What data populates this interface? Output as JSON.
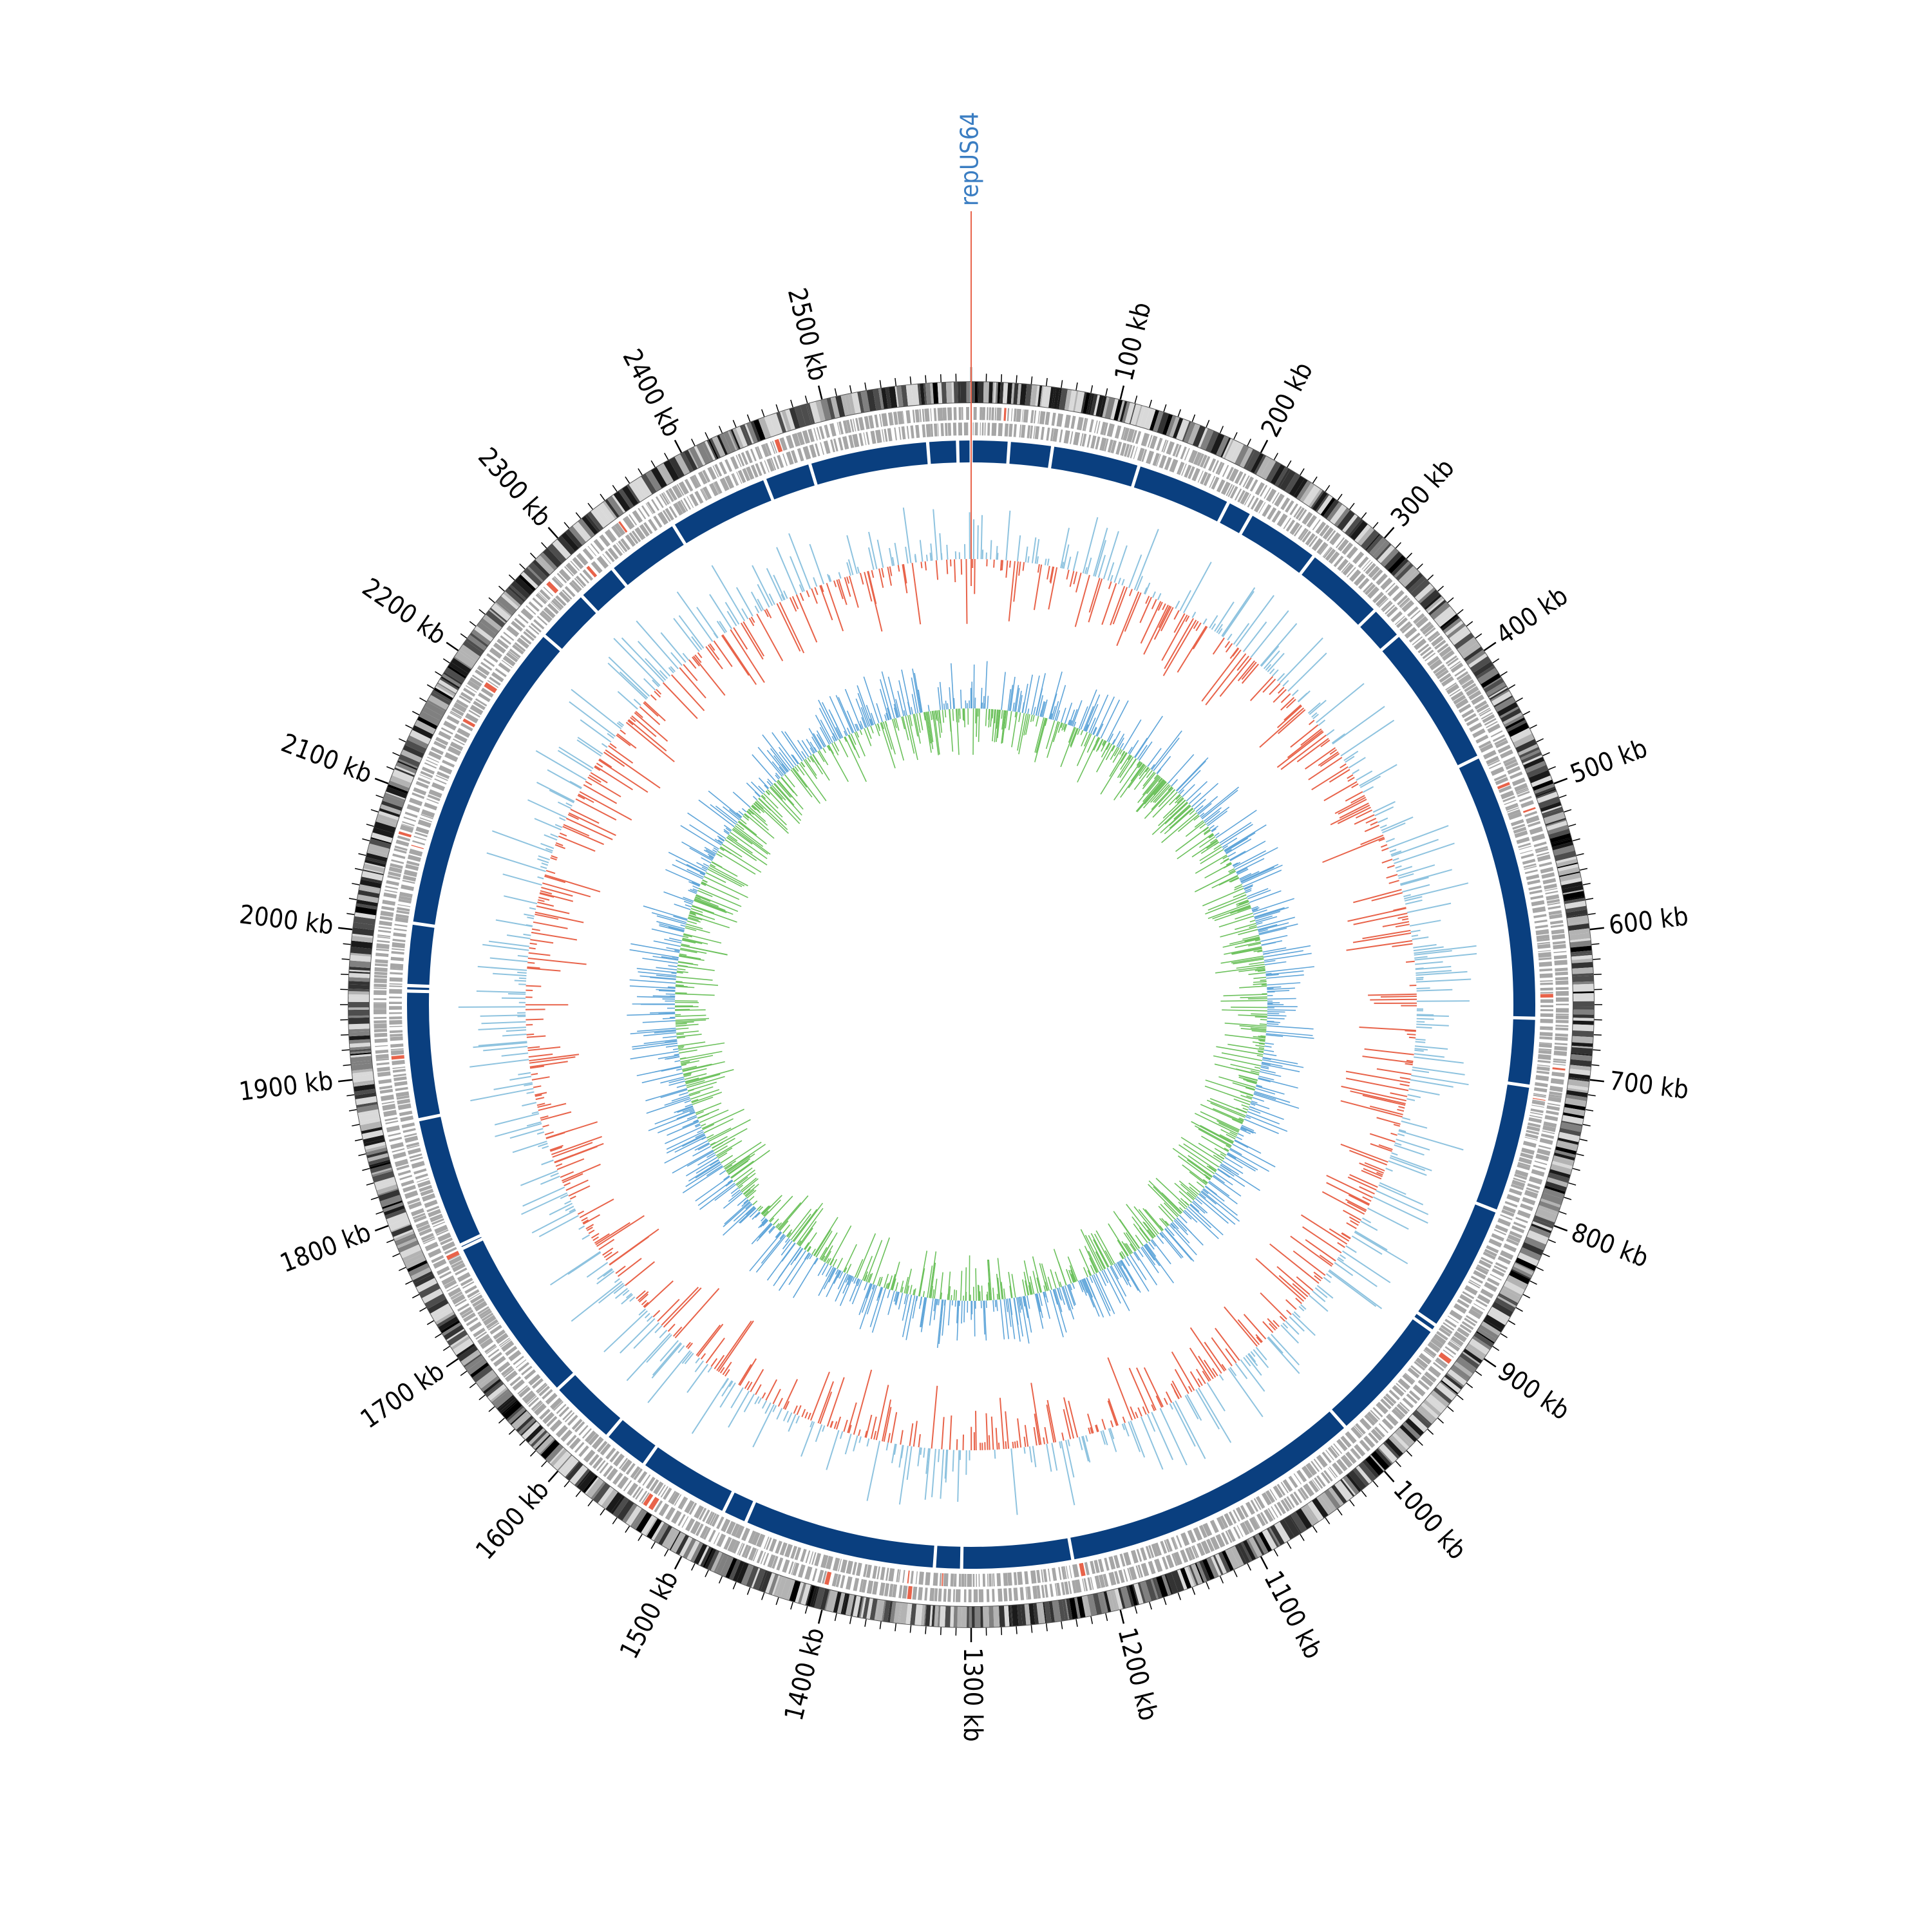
{
  "map": {
    "genome_length_kb": 2600,
    "tick_labels": [
      "100 kb",
      "200 kb",
      "300 kb",
      "400 kb",
      "500 kb",
      "600 kb",
      "700 kb",
      "800 kb",
      "900 kb",
      "1000 kb",
      "1100 kb",
      "1200 kb",
      "1300 kb",
      "1400 kb",
      "1500 kb",
      "1600 kb",
      "1700 kb",
      "1800 kb",
      "1900 kb",
      "2000 kb",
      "2100 kb",
      "2200 kb",
      "2300 kb",
      "2400 kb",
      "2500 kb"
    ],
    "marker": {
      "label": "repUS64",
      "position_kb": 0,
      "color": "#3a7dc2",
      "line_color": "#e8634a"
    },
    "colors": {
      "background": "#ffffff",
      "contig_ring": "#0a3f7f",
      "gene_ring": "#a6a6a6",
      "gene_highlight": "#e8634a",
      "gc_positive": "#e8634a",
      "gc_negative": "#8ec3df",
      "skew_positive": "#6cc15c",
      "skew_negative": "#5fa5d9",
      "ticks": "#000000"
    }
  }
}
